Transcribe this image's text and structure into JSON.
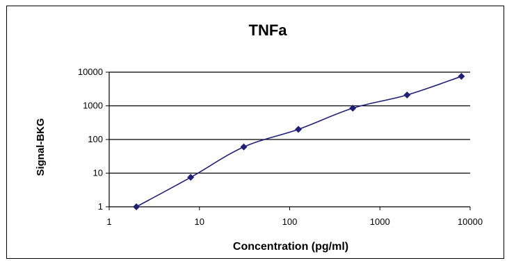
{
  "chart_data": {
    "type": "line",
    "title": "TNFa",
    "xlabel": "Concentration (pg/ml)",
    "ylabel": "Signal-BKG",
    "x_scale": "log",
    "y_scale": "log",
    "xlim": [
      1,
      10000
    ],
    "ylim": [
      1,
      10000
    ],
    "x_ticks": [
      "1",
      "10",
      "100",
      "1000",
      "10000"
    ],
    "y_ticks": [
      "1",
      "10",
      "100",
      "1000",
      "10000"
    ],
    "grid": "horizontal",
    "legend": "none",
    "series": [
      {
        "color": "#1f1f7a",
        "marker": "diamond",
        "x": [
          2,
          8,
          31,
          125,
          500,
          2000,
          8000
        ],
        "y": [
          1,
          7.5,
          60,
          200,
          850,
          2100,
          7500
        ]
      }
    ]
  }
}
